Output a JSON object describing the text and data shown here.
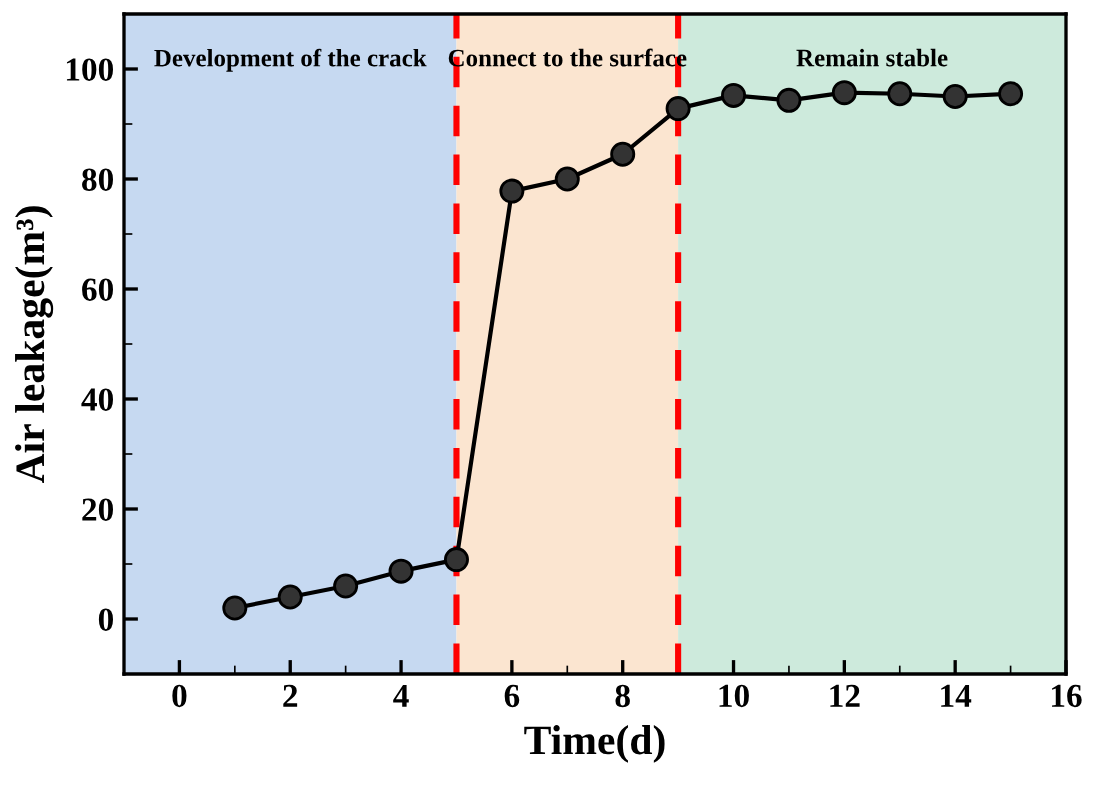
{
  "chart_data": {
    "type": "line",
    "xlabel": "Time(d)",
    "ylabel": "Air leakage(m³)",
    "x": [
      1,
      2,
      3,
      4,
      5,
      6,
      7,
      8,
      9,
      10,
      11,
      12,
      13,
      14,
      15
    ],
    "series": [
      {
        "color": "#000000",
        "values": [
          2,
          4,
          6,
          8.7,
          10.8,
          77.8,
          80,
          84.5,
          92.8,
          95.2,
          94.3,
          95.7,
          95.5,
          95,
          95.5
        ]
      }
    ],
    "marker": "circle",
    "line_style": "solid",
    "grid": false,
    "legend": false,
    "xlim": [
      -1,
      16
    ],
    "xticks": [
      0,
      2,
      4,
      6,
      8,
      10,
      12,
      14,
      16
    ],
    "ylim": [
      -10,
      110
    ],
    "yticks": [
      0,
      20,
      40,
      60,
      80,
      100
    ],
    "bands": [
      {
        "axis": "x",
        "from": -1,
        "to": 5,
        "label": "Development of the crack",
        "color": "#c6d9f1"
      },
      {
        "axis": "x",
        "from": 5,
        "to": 9,
        "label": "Connect to the surface",
        "color": "#fbe5d0"
      },
      {
        "axis": "x",
        "from": 9,
        "to": 16,
        "label": "Remain stable",
        "color": "#cdeadc"
      }
    ],
    "ref_lines": [
      {
        "axis": "x",
        "value": 5,
        "color": "#ff0000",
        "line_style": "dashed"
      },
      {
        "axis": "x",
        "value": 9,
        "color": "#ff0000",
        "line_style": "dashed"
      }
    ]
  }
}
